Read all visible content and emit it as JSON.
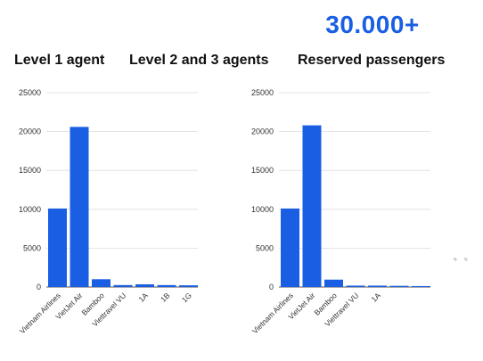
{
  "headline": {
    "stat": "30.000+"
  },
  "headers": [
    "Level 1 agent",
    "Level 2 and 3 agents",
    "Reserved passengers"
  ],
  "colors": {
    "bar": "#1a5fe3",
    "stat": "#1a5fe3",
    "grid": "#dcdcdc",
    "axis": "#555555"
  },
  "chart_data": [
    {
      "type": "bar",
      "title": "",
      "xlabel": "",
      "ylabel": "",
      "ylim": [
        0,
        25000
      ],
      "yticks": [
        0,
        5000,
        10000,
        15000,
        20000,
        25000
      ],
      "grid": true,
      "categories": [
        "Vietnam Airlines",
        "VietJet Air",
        "Bamboo",
        "Viettravel VU",
        "1A",
        "1B",
        "1G"
      ],
      "tick_labels": [
        "Vietnam Airlines",
        "VietJet Air",
        "Bamboo",
        "Viettravel VU",
        "1A",
        "1B",
        "1G"
      ],
      "values": [
        10100,
        20600,
        1000,
        250,
        350,
        250,
        220
      ]
    },
    {
      "type": "bar",
      "title": "",
      "xlabel": "",
      "ylabel": "",
      "ylim": [
        0,
        25000
      ],
      "yticks": [
        0,
        5000,
        10000,
        15000,
        20000,
        25000
      ],
      "grid": true,
      "categories": [
        "Vietnam Airlines",
        "VietJet Air",
        "Bamboo",
        "Viettravel VU",
        "1A",
        "",
        ""
      ],
      "tick_labels": [
        "Vietnam Airlines",
        "VietJet Air",
        "Bamboo",
        "Viettravel VU",
        "1A",
        "",
        ""
      ],
      "values": [
        10100,
        20800,
        950,
        180,
        180,
        150,
        120
      ]
    }
  ],
  "third_chart_ticks": [
    "5",
    "0"
  ]
}
